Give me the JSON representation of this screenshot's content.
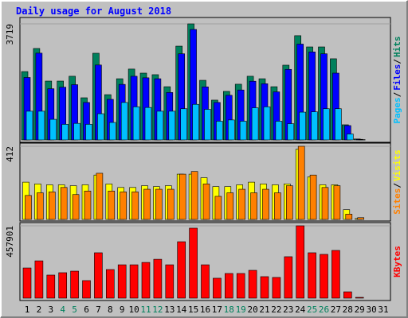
{
  "chart_data": {
    "type": "bar",
    "title": "Daily usage for August 2018",
    "separator": "/",
    "categories": [
      "1",
      "2",
      "3",
      "4",
      "5",
      "6",
      "7",
      "8",
      "9",
      "10",
      "11",
      "12",
      "13",
      "14",
      "15",
      "16",
      "17",
      "18",
      "19",
      "20",
      "21",
      "22",
      "23",
      "24",
      "25",
      "26",
      "27",
      "28",
      "29",
      "30",
      "31"
    ],
    "category_colors": [
      "#000000",
      "#000000",
      "#000000",
      "#00805c",
      "#00805c",
      "#000000",
      "#000000",
      "#000000",
      "#000000",
      "#000000",
      "#00805c",
      "#00805c",
      "#000000",
      "#000000",
      "#000000",
      "#000000",
      "#000000",
      "#00805c",
      "#00805c",
      "#000000",
      "#000000",
      "#000000",
      "#000000",
      "#000000",
      "#00805c",
      "#00805c",
      "#000000",
      "#000000",
      "#000000",
      "#000000",
      "#000000"
    ],
    "panels": [
      {
        "ylim": [
          0,
          3719
        ],
        "yticks": [
          3719
        ],
        "series": [
          {
            "name": "Pages",
            "color": "#00c0ff",
            "values": [
              920,
              920,
              660,
              500,
              530,
              500,
              840,
              560,
              1200,
              1060,
              1040,
              920,
              920,
              1000,
              1140,
              980,
              600,
              640,
              600,
              1030,
              1060,
              600,
              520,
              890,
              900,
              1000,
              1000,
              190,
              10,
              null,
              null
            ]
          },
          {
            "name": "Files",
            "color": "#0000ff",
            "values": [
              2000,
              2780,
              1640,
              1690,
              1770,
              1200,
              2400,
              1300,
              1780,
              2040,
              1990,
              1960,
              1520,
              2760,
              3540,
              1700,
              1200,
              1430,
              1600,
              1880,
              1800,
              1540,
              2260,
              3070,
              2820,
              2760,
              2140,
              460,
              20,
              null,
              null
            ]
          },
          {
            "name": "Hits",
            "color": "#00805c",
            "values": [
              2190,
              2930,
              1885,
              1885,
              2040,
              1350,
              2777,
              1450,
              1960,
              2270,
              2140,
              2090,
              1705,
              3005,
              3719,
              1910,
              1275,
              1555,
              1785,
              2040,
              1960,
              1705,
              2395,
              3340,
              2980,
              2980,
              2600,
              485,
              30,
              null,
              null
            ]
          }
        ]
      },
      {
        "ylim": [
          0,
          412
        ],
        "yticks": [
          412
        ],
        "series": [
          {
            "name": "Sites",
            "color": "#ff8000",
            "values": [
              135,
              150,
              155,
              180,
              140,
              160,
              260,
              160,
              155,
              155,
              170,
              170,
              170,
              255,
              270,
              200,
              130,
              150,
              170,
              150,
              170,
              150,
              190,
              412,
              250,
              180,
              190,
              30,
              10,
              null,
              null
            ]
          },
          {
            "name": "Visits",
            "color": "#ffff00",
            "values": [
              210,
              200,
              195,
              195,
              190,
              195,
              250,
              200,
              180,
              180,
              190,
              185,
              190,
              255,
              255,
              235,
              185,
              185,
              195,
              210,
              200,
              195,
              200,
              395,
              240,
              195,
              195,
              55,
              5,
              null,
              null
            ]
          }
        ]
      },
      {
        "ylim": [
          0,
          457901
        ],
        "yticks": [
          457901
        ],
        "series": [
          {
            "name": "KBytes",
            "color": "#ff0000",
            "values": [
              191000,
              236000,
              146000,
              161000,
              171000,
              111000,
              287000,
              181000,
              211000,
              211000,
              226000,
              246000,
              211000,
              357000,
              443000,
              211000,
              126000,
              156000,
              156000,
              176000,
              136000,
              131000,
              262000,
              457901,
              287000,
              277000,
              302000,
              40000,
              5000,
              null,
              null
            ]
          }
        ]
      }
    ]
  }
}
